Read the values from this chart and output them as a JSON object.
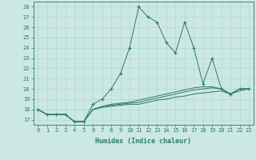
{
  "xlabel": "Humidex (Indice chaleur)",
  "background_color": "#cce8e4",
  "grid_color": "#b0d8d0",
  "line_color": "#2a7a6a",
  "xlim": [
    -0.5,
    23.5
  ],
  "ylim": [
    16.5,
    28.5
  ],
  "yticks": [
    17,
    18,
    19,
    20,
    21,
    22,
    23,
    24,
    25,
    26,
    27,
    28
  ],
  "xtick_labels": [
    "0",
    "1",
    "2",
    "3",
    "4",
    "5",
    "6",
    "7",
    "8",
    "9",
    "10",
    "11",
    "12",
    "13",
    "14",
    "15",
    "16",
    "17",
    "18",
    "19",
    "20",
    "21",
    "22",
    "23"
  ],
  "series": {
    "main": [
      18.0,
      17.5,
      17.5,
      17.5,
      16.8,
      16.8,
      18.5,
      19.0,
      20.0,
      21.5,
      24.0,
      28.0,
      27.0,
      26.5,
      24.5,
      23.5,
      26.5,
      24.0,
      20.5,
      23.0,
      20.0,
      19.5,
      20.0,
      20.0
    ],
    "lower1": [
      18.0,
      17.5,
      17.5,
      17.5,
      16.8,
      16.8,
      18.0,
      18.2,
      18.3,
      18.4,
      18.5,
      18.5,
      18.7,
      18.9,
      19.0,
      19.2,
      19.3,
      19.5,
      19.6,
      19.7,
      19.8,
      19.5,
      19.8,
      20.0
    ],
    "lower2": [
      18.0,
      17.5,
      17.5,
      17.5,
      16.8,
      16.8,
      18.0,
      18.2,
      18.4,
      18.5,
      18.6,
      18.7,
      18.9,
      19.1,
      19.3,
      19.5,
      19.7,
      19.9,
      20.0,
      20.1,
      20.0,
      19.5,
      20.0,
      20.0
    ],
    "lower3": [
      18.0,
      17.5,
      17.5,
      17.5,
      16.8,
      16.8,
      18.0,
      18.3,
      18.5,
      18.6,
      18.7,
      18.9,
      19.1,
      19.3,
      19.5,
      19.7,
      19.9,
      20.1,
      20.2,
      20.2,
      20.0,
      19.5,
      20.0,
      20.0
    ]
  }
}
